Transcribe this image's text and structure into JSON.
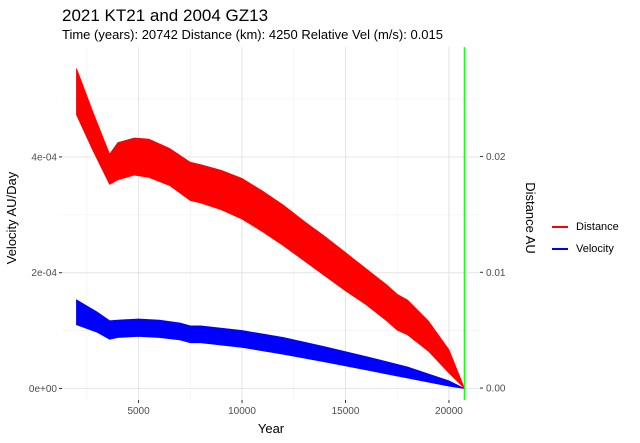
{
  "chart_data": {
    "type": "area",
    "title": "2021 KT21 and 2004 GZ13",
    "subtitle": "Time (years): 20742 Distance (km): 4250 Relative Vel (m/s): 0.015",
    "xlabel": "Year",
    "ylabel_left": "Velocity AU/Day",
    "ylabel_right": "Distance AU",
    "xlim": [
      1300,
      21500
    ],
    "ylim_left": [
      -2e-05,
      0.00059
    ],
    "ylim_right": [
      -0.00103,
      0.02946
    ],
    "x_ticks": [
      5000,
      10000,
      15000,
      20000
    ],
    "x_tick_labels": [
      "5000",
      "10000",
      "15000",
      "20000"
    ],
    "y_left_ticks": [
      0,
      0.0002,
      0.0004
    ],
    "y_left_tick_labels": [
      "0e+00",
      "2e-04",
      "4e-04"
    ],
    "y_right_ticks": [
      0,
      0.01,
      0.02
    ],
    "y_right_tick_labels": [
      "0.00",
      "0.01",
      "0.02"
    ],
    "grid": true,
    "legend_position": "right",
    "vline": {
      "x": 20742,
      "color": "#00ff00"
    },
    "series": [
      {
        "name": "Distance",
        "axis": "right",
        "color": "#ff0000",
        "x": [
          2000,
          2800,
          3600,
          4000,
          4800,
          5500,
          6500,
          7500,
          8000,
          9000,
          10000,
          11000,
          12000,
          13000,
          14000,
          15000,
          16000,
          17000,
          17500,
          18000,
          19000,
          20000,
          20742
        ],
        "upper": [
          0.0276,
          0.0238,
          0.0202,
          0.0212,
          0.0216,
          0.0215,
          0.0207,
          0.0195,
          0.0193,
          0.0188,
          0.0181,
          0.017,
          0.0158,
          0.0144,
          0.0131,
          0.0117,
          0.0103,
          0.0089,
          0.0081,
          0.0076,
          0.0058,
          0.0033,
          0.0
        ],
        "lower": [
          0.0236,
          0.0205,
          0.0176,
          0.018,
          0.0184,
          0.0182,
          0.0175,
          0.0162,
          0.016,
          0.0154,
          0.0146,
          0.0135,
          0.0123,
          0.011,
          0.0097,
          0.0084,
          0.0072,
          0.0058,
          0.005,
          0.0046,
          0.0032,
          0.0013,
          0.0
        ]
      },
      {
        "name": "Velocity",
        "axis": "left",
        "color": "#0000ff",
        "x": [
          2000,
          3000,
          3600,
          4000,
          5000,
          6000,
          7000,
          7500,
          8000,
          10000,
          12000,
          14000,
          16000,
          18000,
          20000,
          20742
        ],
        "upper": [
          0.000153,
          0.000132,
          0.000117,
          0.000118,
          0.00012,
          0.000118,
          0.000113,
          0.000108,
          0.000108,
          0.0001,
          8.8e-05,
          7.2e-05,
          5.5e-05,
          3.7e-05,
          1.3e-05,
          0.0
        ],
        "lower": [
          0.00011,
          9.7e-05,
          8.5e-05,
          8.8e-05,
          9e-05,
          8.8e-05,
          8.4e-05,
          7.9e-05,
          7.9e-05,
          7.1e-05,
          5.9e-05,
          4.6e-05,
          3.2e-05,
          1.8e-05,
          4e-06,
          0.0
        ]
      }
    ]
  }
}
